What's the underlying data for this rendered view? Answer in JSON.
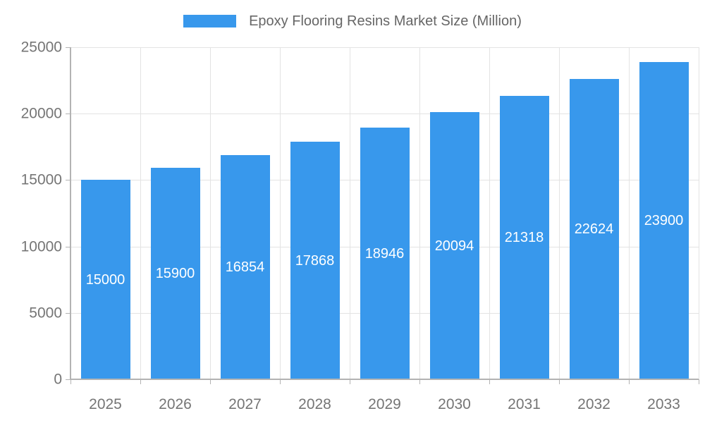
{
  "chart_data": {
    "type": "bar",
    "title": "Epoxy Flooring Resins Market Size (Million)",
    "xlabel": "",
    "ylabel": "",
    "categories": [
      "2025",
      "2026",
      "2027",
      "2028",
      "2029",
      "2030",
      "2031",
      "2032",
      "2033"
    ],
    "values": [
      15000,
      15900,
      16854,
      17868,
      18946,
      20094,
      21318,
      22624,
      23900
    ],
    "value_labels": [
      "15000",
      "15900",
      "16854",
      "17868",
      "18946",
      "20094",
      "21318",
      "22624",
      "23900"
    ],
    "ylim": [
      0,
      25000
    ],
    "yticks": [
      0,
      5000,
      10000,
      15000,
      20000,
      25000
    ],
    "ytick_labels": [
      "0",
      "5000",
      "10000",
      "15000",
      "20000",
      "25000"
    ],
    "grid": true,
    "legend_position": "top",
    "colors": {
      "bar": "#3898ec",
      "bar_label_text": "#ffffff",
      "axis_text": "#757575",
      "title_text": "#666666",
      "gridline": "#e3e3e3",
      "axis_line": "#b3b3b3"
    }
  }
}
